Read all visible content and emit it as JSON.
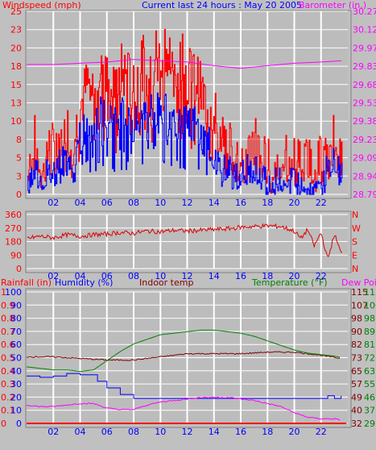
{
  "header": {
    "left_title": "Windspeed (mph)",
    "center_title": "Current last 24 hours : May 20 2005",
    "right_title": "Barometer (in.)"
  },
  "legend_bottom": {
    "rainfall": "Rainfall (in)",
    "humidity": "Humidity (%)",
    "indoor": "Indoor temp",
    "temperature": "Temperature (°F)",
    "dewpoint": "Dew Point"
  },
  "colors": {
    "background": "#c0c0c0",
    "plot_bg": "#bcbcbc",
    "grid": "#ffffff",
    "wind_gust": "#ff0000",
    "wind_avg": "#0000ff",
    "barometer": "#ff00ff",
    "direction": "#dd0000",
    "humidity": "#0000ff",
    "indoor": "#800000",
    "temperature": "#008000",
    "dewpoint": "#ff00ff",
    "rainfall": "#ff0000",
    "text_red": "#ff0000",
    "text_blue": "#0000ff",
    "text_magenta": "#ff00ff",
    "text_green": "#008000",
    "text_maroon": "#800000"
  },
  "chart_data": [
    {
      "type": "line",
      "name": "wind-barometer",
      "x_ticks": [
        "02",
        "04",
        "06",
        "08",
        "10",
        "12",
        "14",
        "16",
        "18",
        "20",
        "22"
      ],
      "xlim": [
        0,
        24
      ],
      "y_left_label": "Windspeed (mph)",
      "y_left_ticks": [
        "0",
        "3",
        "5",
        "8",
        "10",
        "13",
        "15",
        "18",
        "20",
        "23",
        "25"
      ],
      "y_left_lim": [
        0,
        25
      ],
      "y_right_label": "Barometer (in.)",
      "y_right_ticks": [
        "28.79",
        "28.94",
        "29.09",
        "29.23",
        "29.38",
        "29.53",
        "29.68",
        "29.83",
        "29.97",
        "30.12",
        "30.27"
      ],
      "y_right_lim": [
        28.79,
        30.27
      ],
      "series": [
        {
          "name": "Wind gust",
          "x": [
            0,
            0.5,
            1,
            1.5,
            2,
            2.5,
            3,
            3.5,
            4,
            4.5,
            5,
            5.5,
            6,
            6.5,
            7,
            7.5,
            8,
            8.5,
            9,
            9.5,
            10,
            10.5,
            11,
            11.5,
            12,
            12.5,
            13,
            13.5,
            14,
            14.5,
            15,
            15.5,
            16,
            16.5,
            17,
            17.5,
            18,
            18.5,
            19,
            19.5,
            20,
            20.5,
            21,
            21.5,
            22,
            22.5,
            23,
            23.5
          ],
          "values": [
            2,
            8,
            4,
            6,
            6,
            8,
            9,
            7,
            12,
            15,
            14,
            18,
            19,
            14,
            17,
            16,
            15,
            17,
            19,
            18,
            22,
            20,
            17,
            20,
            16,
            17,
            14,
            12,
            12,
            7,
            8,
            5,
            5,
            5,
            8,
            5,
            4,
            4,
            4,
            5,
            5,
            4,
            4,
            4,
            4,
            5,
            9,
            4
          ]
        },
        {
          "name": "Wind average",
          "x": [
            0,
            0.5,
            1,
            1.5,
            2,
            2.5,
            3,
            3.5,
            4,
            4.5,
            5,
            5.5,
            6,
            6.5,
            7,
            7.5,
            8,
            8.5,
            9,
            9.5,
            10,
            10.5,
            11,
            11.5,
            12,
            12.5,
            13,
            13.5,
            14,
            14.5,
            15,
            15.5,
            16,
            16.5,
            17,
            17.5,
            18,
            18.5,
            19,
            19.5,
            20,
            20.5,
            21,
            21.5,
            22,
            22.5,
            23,
            23.5
          ],
          "values": [
            0,
            4,
            2,
            3,
            3,
            4,
            5,
            4,
            8,
            10,
            9,
            11,
            12,
            10,
            11,
            10,
            9,
            11,
            12,
            11,
            12,
            11,
            10,
            12,
            9,
            10,
            8,
            7,
            6,
            3,
            4,
            2,
            2,
            3,
            4,
            2,
            1,
            1,
            2,
            2,
            2,
            1,
            1,
            2,
            2,
            3,
            5,
            2
          ]
        },
        {
          "name": "Barometer",
          "axis": "right",
          "x": [
            0,
            2,
            4,
            6,
            8,
            10,
            12,
            14,
            16,
            18,
            20,
            22,
            23.5
          ],
          "values": [
            29.84,
            29.84,
            29.85,
            29.86,
            29.88,
            29.87,
            29.86,
            29.83,
            29.81,
            29.83,
            29.85,
            29.86,
            29.87
          ]
        }
      ]
    },
    {
      "type": "line",
      "name": "wind-direction",
      "x_ticks": [
        "02",
        "04",
        "06",
        "08",
        "10",
        "12",
        "14",
        "16",
        "18",
        "20",
        "22"
      ],
      "xlim": [
        0,
        24
      ],
      "y_left_ticks": [
        "360",
        "270",
        "180",
        "90",
        "0"
      ],
      "y_left_lim": [
        0,
        360
      ],
      "y_right_ticks": [
        "N",
        "W",
        "S",
        "E",
        "N"
      ],
      "series": [
        {
          "name": "Wind direction",
          "x": [
            0,
            1,
            2,
            3,
            4,
            5,
            6,
            7,
            8,
            9,
            10,
            11,
            12,
            13,
            14,
            15,
            16,
            17,
            18,
            19,
            20,
            20.5,
            21,
            21.5,
            22,
            22.5,
            23,
            23.5
          ],
          "values": [
            200,
            215,
            205,
            225,
            215,
            225,
            230,
            240,
            235,
            250,
            245,
            255,
            250,
            255,
            260,
            265,
            275,
            280,
            285,
            280,
            250,
            200,
            260,
            150,
            240,
            60,
            230,
            100
          ]
        }
      ]
    },
    {
      "type": "line",
      "name": "temperature-humidity-rain",
      "x_ticks": [
        "02",
        "04",
        "06",
        "08",
        "10",
        "12",
        "14",
        "16",
        "18",
        "20",
        "22"
      ],
      "xlim": [
        0,
        24
      ],
      "y_left_ticks_rain": [
        "0",
        "0.1",
        "0.2",
        "0.3",
        "0.4",
        "0.5",
        "0.6",
        "0.7",
        "0.8",
        "0.9",
        "1"
      ],
      "y_left_ticks_humidity": [
        "0",
        "10",
        "20",
        "30",
        "40",
        "50",
        "60",
        "70",
        "80",
        "90",
        "100"
      ],
      "y_right_ticks_indoor": [
        "32",
        "40",
        "49",
        "57",
        "65",
        "73",
        "82",
        "90",
        "98",
        "107",
        "115"
      ],
      "y_right_ticks_temp": [
        "29",
        "37",
        "46",
        "55",
        "63",
        "72",
        "81",
        "89",
        "98",
        "106",
        "115"
      ],
      "humidity_lim": [
        0,
        100
      ],
      "temp_lim": [
        29,
        115
      ],
      "series": [
        {
          "name": "Humidity",
          "axis": "humidity",
          "x": [
            0,
            1,
            2,
            3,
            4,
            4.8,
            5.3,
            6,
            7,
            8,
            10,
            12,
            14,
            16,
            18,
            20,
            22,
            22.5,
            23,
            23.5
          ],
          "values": [
            36,
            35,
            36,
            38,
            37,
            37,
            32,
            27,
            22,
            19,
            19,
            19,
            19,
            19,
            19,
            19,
            19,
            21,
            19,
            21
          ]
        },
        {
          "name": "Indoor temp",
          "axis": "indoor",
          "x": [
            0,
            2,
            4,
            6,
            8,
            10,
            12,
            14,
            16,
            18,
            20,
            22,
            23.5
          ],
          "values": [
            74,
            74,
            73,
            72,
            72,
            74,
            76,
            76,
            76,
            77,
            77,
            75,
            73
          ]
        },
        {
          "name": "Temperature",
          "axis": "temp",
          "x": [
            0,
            1,
            2,
            3,
            4,
            5,
            6,
            7,
            8,
            9,
            10,
            11,
            12,
            13,
            14,
            15,
            16,
            17,
            18,
            19,
            20,
            21,
            22,
            23,
            23.5
          ],
          "values": [
            66,
            65,
            64,
            64,
            63,
            64,
            70,
            76,
            81,
            84,
            87,
            88,
            89,
            90,
            90,
            89,
            88,
            86,
            83,
            80,
            77,
            75,
            74,
            73,
            72
          ]
        },
        {
          "name": "Dew Point",
          "axis": "temp",
          "x": [
            0,
            1,
            2,
            3,
            4,
            5,
            6,
            7,
            8,
            9,
            10,
            11,
            12,
            13,
            14,
            15,
            16,
            17,
            18,
            19,
            20,
            21,
            22,
            23,
            23.5
          ],
          "values": [
            41,
            40,
            40,
            41,
            42,
            42,
            39,
            38,
            38,
            41,
            43,
            44,
            45,
            46,
            46,
            46,
            45,
            44,
            42,
            40,
            36,
            33,
            32,
            32,
            31
          ]
        },
        {
          "name": "Rainfall",
          "axis": "rain",
          "x": [
            0,
            24
          ],
          "values": [
            0,
            0
          ]
        }
      ]
    }
  ]
}
